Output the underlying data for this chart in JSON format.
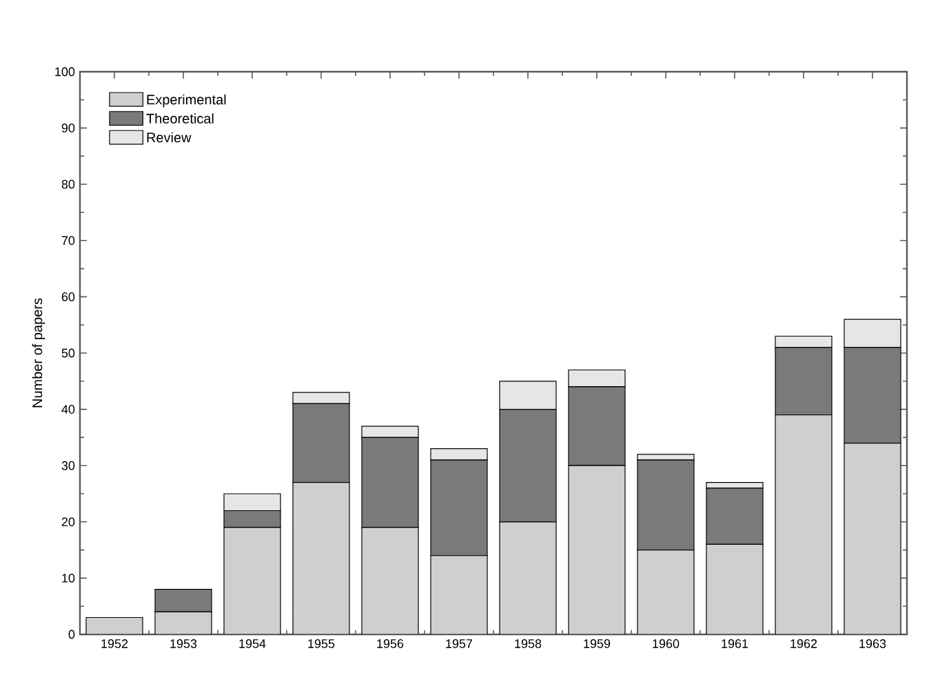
{
  "chart_data": {
    "type": "bar",
    "stacked": true,
    "ylabel": "Number of papers",
    "categories": [
      "1952",
      "1953",
      "1954",
      "1955",
      "1956",
      "1957",
      "1958",
      "1959",
      "1960",
      "1961",
      "1962",
      "1963"
    ],
    "series": [
      {
        "name": "Experimental",
        "color": "#cfcfcf",
        "values": [
          3,
          4,
          19,
          27,
          19,
          14,
          20,
          30,
          15,
          16,
          39,
          34
        ]
      },
      {
        "name": "Theoretical",
        "color": "#7a7a7a",
        "values": [
          0,
          4,
          3,
          14,
          16,
          17,
          20,
          14,
          16,
          10,
          12,
          17
        ]
      },
      {
        "name": "Review",
        "color": "#e6e6e6",
        "values": [
          0,
          0,
          3,
          2,
          2,
          2,
          5,
          3,
          1,
          1,
          2,
          5
        ]
      }
    ],
    "ylim": [
      0,
      100
    ],
    "yticks": [
      0,
      10,
      20,
      30,
      40,
      50,
      60,
      70,
      80,
      90,
      100
    ],
    "legend": "top left",
    "grid": false
  }
}
